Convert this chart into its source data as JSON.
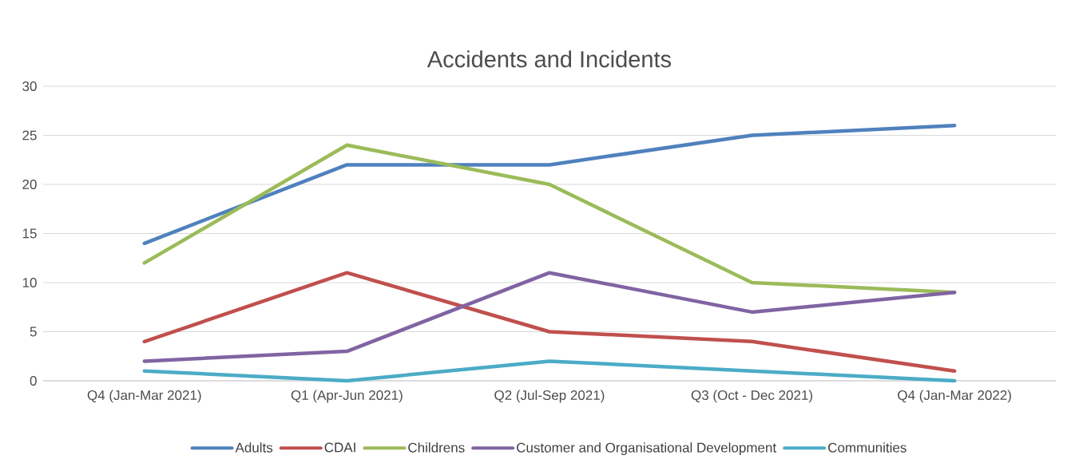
{
  "chart_data": {
    "type": "line",
    "title": "Accidents and Incidents",
    "categories": [
      "Q4 (Jan-Mar 2021)",
      "Q1 (Apr-Jun 2021)",
      "Q2 (Jul-Sep 2021)",
      "Q3 (Oct - Dec 2021)",
      "Q4 (Jan-Mar 2022)"
    ],
    "series": [
      {
        "name": "Adults",
        "color": "#4f81bd",
        "values": [
          14,
          22,
          22,
          25,
          26
        ]
      },
      {
        "name": "CDAI",
        "color": "#c0504d",
        "values": [
          4,
          11,
          5,
          4,
          1
        ]
      },
      {
        "name": "Childrens",
        "color": "#9bbb59",
        "values": [
          12,
          24,
          20,
          10,
          9
        ]
      },
      {
        "name": "Customer and Organisational Development",
        "color": "#8064a2",
        "values": [
          2,
          3,
          11,
          7,
          9
        ]
      },
      {
        "name": "Communities",
        "color": "#4bacc6",
        "values": [
          1,
          0,
          2,
          1,
          0
        ]
      }
    ],
    "ylim": [
      0,
      30
    ],
    "yticks": [
      0,
      5,
      10,
      15,
      20,
      25,
      30
    ],
    "grid": "y",
    "legend": "bottom"
  }
}
